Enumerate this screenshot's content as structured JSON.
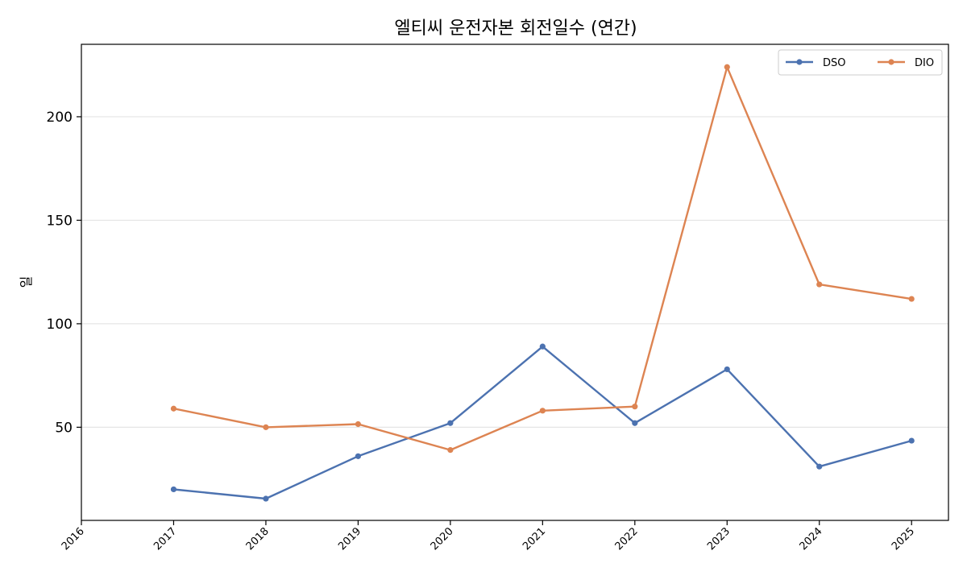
{
  "chart_data": {
    "type": "line",
    "title": "엘티씨 운전자본 회전일수 (연간)",
    "xlabel": "",
    "ylabel": "일",
    "x": [
      "2016",
      "2017",
      "2018",
      "2019",
      "2020",
      "2021",
      "2022",
      "2023",
      "2024",
      "2025"
    ],
    "xlim": [
      2016,
      2025.4
    ],
    "ylim": [
      5,
      235
    ],
    "yticks": [
      50,
      100,
      150,
      200
    ],
    "grid": "horizontal",
    "legend_position": "top-right",
    "series": [
      {
        "name": "DSO",
        "color": "#4C72B0",
        "points": [
          [
            2017,
            20
          ],
          [
            2018,
            15.5
          ],
          [
            2019,
            36
          ],
          [
            2020,
            52
          ],
          [
            2021,
            89
          ],
          [
            2022,
            52
          ],
          [
            2023,
            78
          ],
          [
            2024,
            31
          ],
          [
            2025,
            43.5
          ]
        ]
      },
      {
        "name": "DIO",
        "color": "#DD8452",
        "points": [
          [
            2017,
            59
          ],
          [
            2018,
            50
          ],
          [
            2019,
            51.5
          ],
          [
            2020,
            39
          ],
          [
            2021,
            58
          ],
          [
            2022,
            60
          ],
          [
            2023,
            224
          ],
          [
            2024,
            119
          ],
          [
            2025,
            112
          ]
        ]
      }
    ]
  }
}
